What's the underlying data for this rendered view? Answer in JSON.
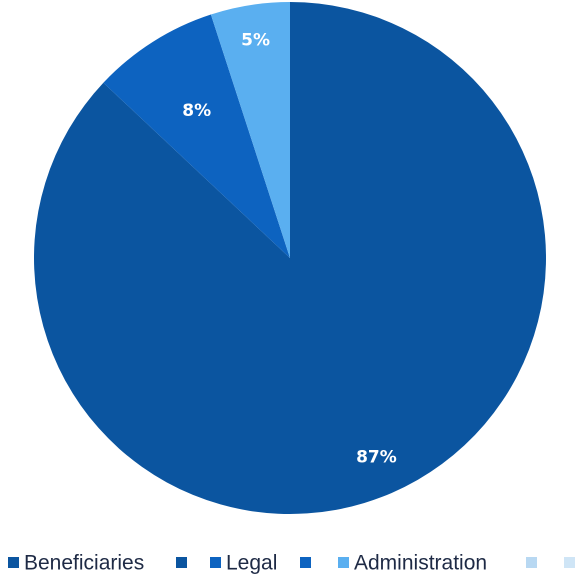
{
  "chart_data": {
    "type": "pie",
    "title": "",
    "slices": [
      {
        "label": "Beneficiaries",
        "value": 87,
        "display": "87%",
        "color": "#0b55a0"
      },
      {
        "label": "Legal",
        "value": 8,
        "display": "8%",
        "color": "#0d63c0"
      },
      {
        "label": "Administration",
        "value": 5,
        "display": "5%",
        "color": "#5aaff0"
      }
    ],
    "start_direction": "top",
    "direction": "clockwise",
    "legend_position": "bottom"
  }
}
